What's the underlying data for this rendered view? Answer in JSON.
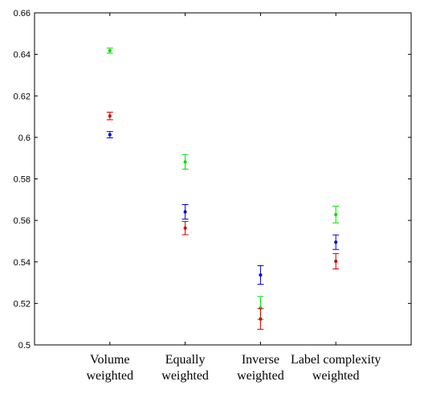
{
  "chart_data": {
    "type": "scatter",
    "categories": [
      [
        "Volume",
        "weighted"
      ],
      [
        "Equally",
        "weighted"
      ],
      [
        "Inverse",
        "weighted"
      ],
      [
        "Label complexity",
        "weighted"
      ]
    ],
    "ylim": [
      0.5,
      0.66
    ],
    "yticks": [
      "0.5",
      "0.52",
      "0.54",
      "0.56",
      "0.58",
      "0.6",
      "0.62",
      "0.64",
      "0.66"
    ],
    "grid": false,
    "series": [
      {
        "color": "#00dd00",
        "values": [
          0.6418,
          0.5882,
          0.5178,
          0.5628
        ],
        "errors": [
          0.0012,
          0.0035,
          0.0055,
          0.004
        ]
      },
      {
        "color": "#cc0000",
        "values": [
          0.6103,
          0.5563,
          0.5125,
          0.5403
        ],
        "errors": [
          0.0018,
          0.0032,
          0.005,
          0.0037
        ]
      },
      {
        "color": "#0000cc",
        "values": [
          0.6013,
          0.5641,
          0.5337,
          0.5495
        ],
        "errors": [
          0.0015,
          0.0035,
          0.0045,
          0.0035
        ]
      }
    ]
  }
}
